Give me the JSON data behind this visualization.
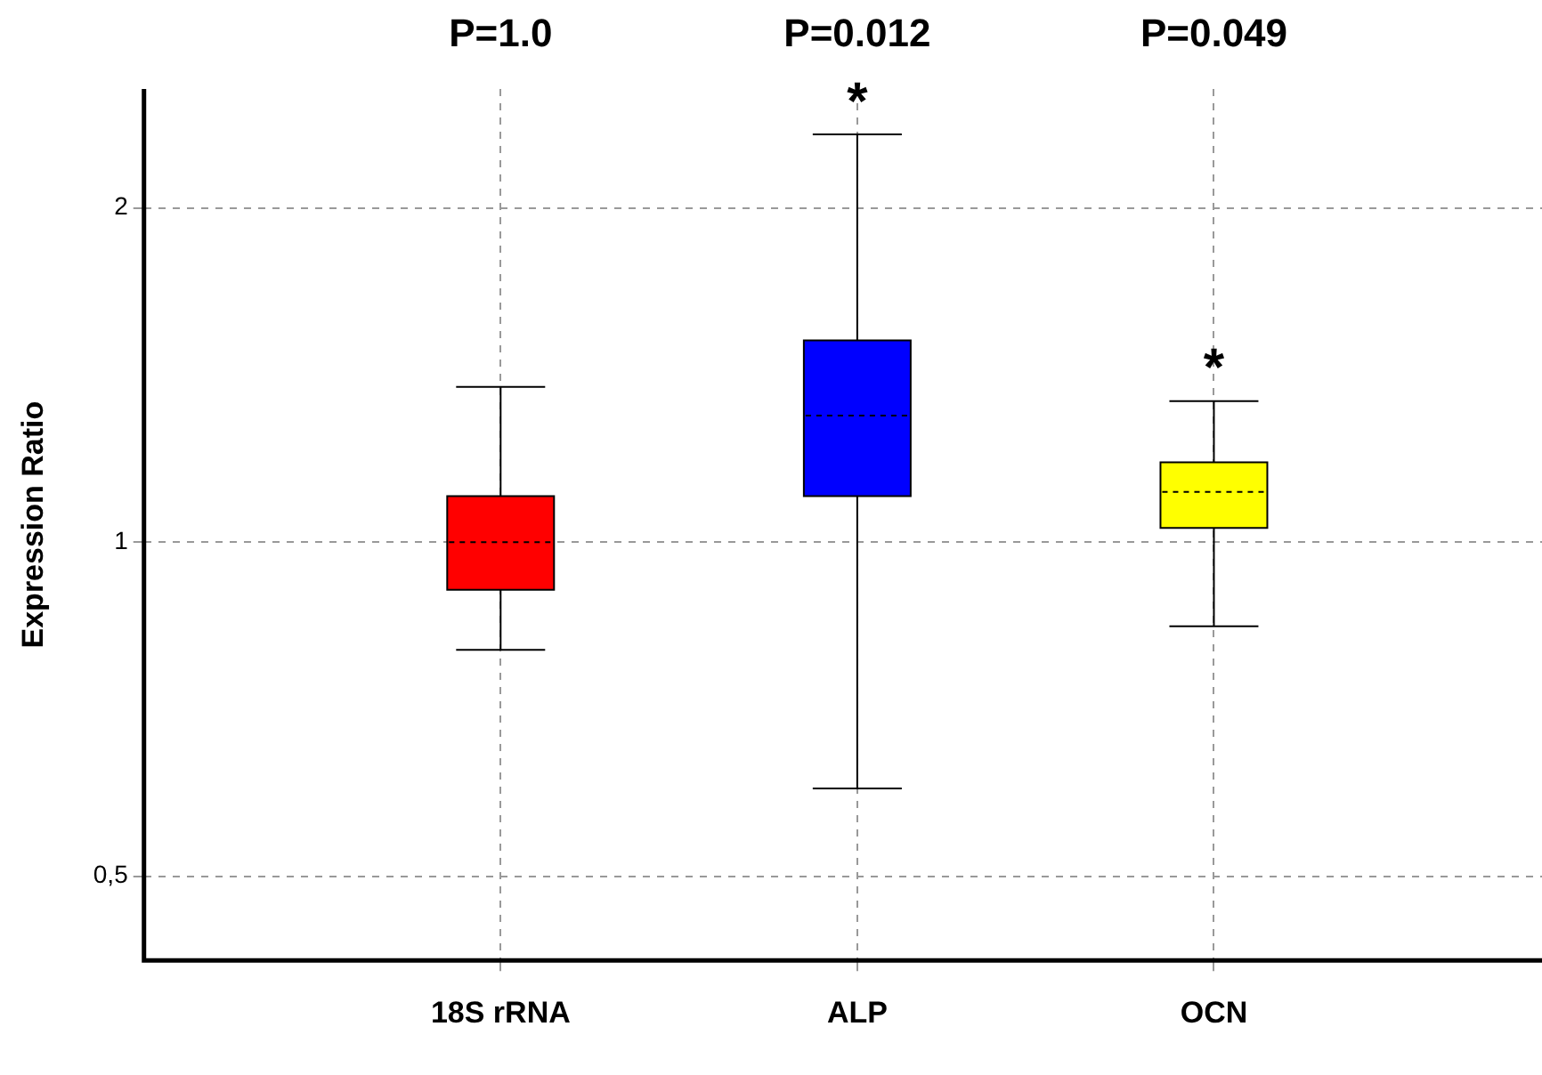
{
  "chart_data": {
    "type": "box",
    "ylabel": "Expression Ratio",
    "categories": [
      "18S rRNA",
      "ALP",
      "OCN"
    ],
    "colors": [
      "#ff0000",
      "#0000ff",
      "#ffff00"
    ],
    "boxes": [
      {
        "low": 0.8,
        "q1": 0.906,
        "median": 1.0,
        "q3": 1.1,
        "high": 1.38
      },
      {
        "low": 0.6,
        "q1": 1.1,
        "median": 1.3,
        "q3": 1.52,
        "high": 2.33
      },
      {
        "low": 0.84,
        "q1": 1.03,
        "median": 1.11,
        "q3": 1.18,
        "high": 1.34
      }
    ],
    "log": "y",
    "ylim": [
      0.42,
      2.56
    ],
    "yticks": [
      {
        "value": 0.5,
        "label": "0,5"
      },
      1,
      2
    ],
    "grid": true,
    "legend": false,
    "annotations": [
      "P=1.0",
      "P=0.012",
      "P=0.049",
      {
        "text": "*",
        "x": "ALP",
        "y": 2.33
      },
      {
        "text": "*",
        "x": "OCN",
        "y": 1.34
      }
    ]
  }
}
